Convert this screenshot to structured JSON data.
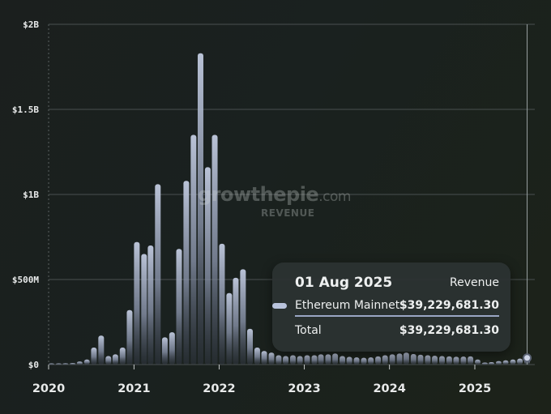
{
  "chart_data": {
    "type": "bar",
    "title": "",
    "xlabel": "",
    "ylabel": "",
    "ylim": [
      0,
      2000000000
    ],
    "xlim": [
      "2020-01-01",
      "2025-09-15"
    ],
    "yticks": [
      {
        "value": 0,
        "label": "$0"
      },
      {
        "value": 500000000,
        "label": "$500M"
      },
      {
        "value": 1000000000,
        "label": "$1B"
      },
      {
        "value": 1500000000,
        "label": "$1.5B"
      },
      {
        "value": 2000000000,
        "label": "$2B"
      }
    ],
    "xticks": [
      {
        "value": "2020-01-01",
        "label": "2020"
      },
      {
        "value": "2021-01-01",
        "label": "2021"
      },
      {
        "value": "2022-01-01",
        "label": "2022"
      },
      {
        "value": "2023-01-01",
        "label": "2023"
      },
      {
        "value": "2024-01-01",
        "label": "2024"
      },
      {
        "value": "2025-01-01",
        "label": "2025"
      }
    ],
    "grid": true,
    "color": "#b9c3dc",
    "series": [
      {
        "name": "Ethereum Mainnet",
        "x": [
          "2020-01-01",
          "2020-02-01",
          "2020-03-01",
          "2020-04-01",
          "2020-05-01",
          "2020-06-01",
          "2020-07-01",
          "2020-08-01",
          "2020-09-01",
          "2020-10-01",
          "2020-11-01",
          "2020-12-01",
          "2021-01-01",
          "2021-02-01",
          "2021-03-01",
          "2021-04-01",
          "2021-05-01",
          "2021-06-01",
          "2021-07-01",
          "2021-08-01",
          "2021-09-01",
          "2021-10-01",
          "2021-11-01",
          "2021-12-01",
          "2022-01-01",
          "2022-02-01",
          "2022-03-01",
          "2022-04-01",
          "2022-05-01",
          "2022-06-01",
          "2022-07-01",
          "2022-08-01",
          "2022-09-01",
          "2022-10-01",
          "2022-11-01",
          "2022-12-01",
          "2023-01-01",
          "2023-02-01",
          "2023-03-01",
          "2023-04-01",
          "2023-05-01",
          "2023-06-01",
          "2023-07-01",
          "2023-08-01",
          "2023-09-01",
          "2023-10-01",
          "2023-11-01",
          "2023-12-01",
          "2024-01-01",
          "2024-02-01",
          "2024-03-01",
          "2024-04-01",
          "2024-05-01",
          "2024-06-01",
          "2024-07-01",
          "2024-08-01",
          "2024-09-01",
          "2024-10-01",
          "2024-11-01",
          "2024-12-01",
          "2025-01-01",
          "2025-02-01",
          "2025-03-01",
          "2025-04-01",
          "2025-05-01",
          "2025-06-01",
          "2025-07-01",
          "2025-08-01"
        ],
        "values": [
          4000000,
          5000000,
          8000000,
          9000000,
          18000000,
          30000000,
          100000000,
          170000000,
          50000000,
          60000000,
          100000000,
          320000000,
          720000000,
          650000000,
          700000000,
          1060000000,
          160000000,
          190000000,
          680000000,
          1080000000,
          1350000000,
          1830000000,
          1160000000,
          1350000000,
          710000000,
          420000000,
          510000000,
          560000000,
          210000000,
          100000000,
          80000000,
          70000000,
          55000000,
          50000000,
          55000000,
          50000000,
          55000000,
          55000000,
          60000000,
          60000000,
          65000000,
          50000000,
          45000000,
          42000000,
          40000000,
          42000000,
          48000000,
          55000000,
          60000000,
          65000000,
          70000000,
          62000000,
          58000000,
          55000000,
          52000000,
          50000000,
          48000000,
          46000000,
          47000000,
          48000000,
          30000000,
          12000000,
          14000000,
          20000000,
          25000000,
          30000000,
          35000000,
          39229681.3
        ]
      }
    ]
  },
  "watermark": {
    "logo_main": "growthepie",
    "logo_suffix": ".com",
    "subtitle": "REVENUE"
  },
  "tooltip": {
    "date": "01 Aug 2025",
    "metric": "Revenue",
    "series_name": "Ethereum Mainnet",
    "series_value": "$39,229,681.30",
    "total_label": "Total",
    "total_value": "$39,229,681.30"
  }
}
